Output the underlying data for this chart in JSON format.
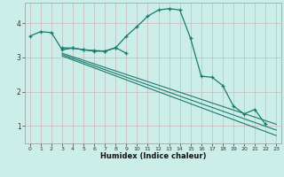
{
  "xlabel": "Humidex (Indice chaleur)",
  "bg_color": "#cceee8",
  "plot_bg_color": "#cceee8",
  "line_color": "#1a7a6e",
  "grid_color": "#c8b8b8",
  "xlim": [
    -0.5,
    23.5
  ],
  "ylim": [
    0.5,
    4.6
  ],
  "yticks": [
    1,
    2,
    3,
    4
  ],
  "xticks": [
    0,
    1,
    2,
    3,
    4,
    5,
    6,
    7,
    8,
    9,
    10,
    11,
    12,
    13,
    14,
    15,
    16,
    17,
    18,
    19,
    20,
    21,
    22,
    23
  ],
  "line1_x": [
    0,
    1,
    2,
    3,
    4,
    5,
    6,
    7,
    8,
    9,
    10,
    11,
    12,
    13,
    14,
    15,
    16,
    17,
    18,
    19,
    20,
    21,
    22
  ],
  "line1_y": [
    3.62,
    3.75,
    3.72,
    3.22,
    3.27,
    3.22,
    3.2,
    3.18,
    3.28,
    3.62,
    3.9,
    4.2,
    4.38,
    4.42,
    4.38,
    3.55,
    2.45,
    2.42,
    2.18,
    1.58,
    1.35,
    1.48,
    1.05
  ],
  "line2_x": [
    3,
    4,
    5,
    6,
    7,
    8,
    9
  ],
  "line2_y": [
    3.28,
    3.27,
    3.22,
    3.18,
    3.18,
    3.28,
    3.12
  ],
  "line3_x": [
    3,
    23
  ],
  "line3_y": [
    3.12,
    1.05
  ],
  "line4_x": [
    3,
    23
  ],
  "line4_y": [
    3.08,
    0.88
  ],
  "line5_x": [
    3,
    23
  ],
  "line5_y": [
    3.04,
    0.72
  ]
}
